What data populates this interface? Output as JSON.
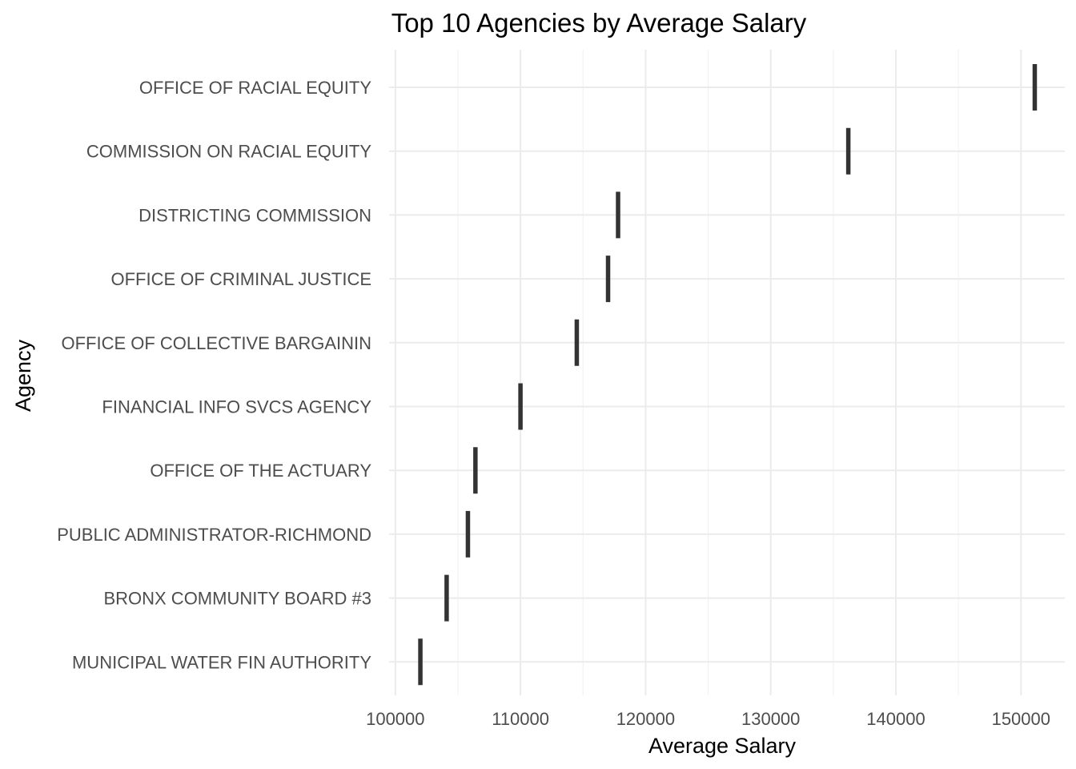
{
  "chart_data": {
    "type": "bar",
    "title": "Top 10 Agencies by Average Salary",
    "xlabel": "Average Salary",
    "ylabel": "Agency",
    "categories": [
      "OFFICE OF RACIAL EQUITY",
      "COMMISSION ON RACIAL EQUITY",
      "DISTRICTING COMMISSION",
      "OFFICE OF CRIMINAL JUSTICE",
      "OFFICE OF COLLECTIVE BARGAININ",
      "FINANCIAL INFO SVCS AGENCY",
      "OFFICE OF THE ACTUARY",
      "PUBLIC ADMINISTRATOR-RICHMOND",
      "BRONX COMMUNITY BOARD #3",
      "MUNICIPAL WATER FIN AUTHORITY"
    ],
    "values": [
      151100,
      136200,
      117800,
      117000,
      114500,
      110000,
      106400,
      105800,
      104100,
      102000
    ],
    "xlim": [
      99500,
      153500
    ],
    "xticks": [
      100000,
      110000,
      120000,
      130000,
      140000,
      150000
    ],
    "xtick_labels": [
      "100000",
      "110000",
      "120000",
      "130000",
      "140000",
      "150000"
    ],
    "grid": true,
    "legend": "none",
    "colors": {
      "mark": "#333333",
      "grid_major": "#ebebeb",
      "grid_minor": "#f2f2f2",
      "text": "#4d4d4d"
    }
  }
}
